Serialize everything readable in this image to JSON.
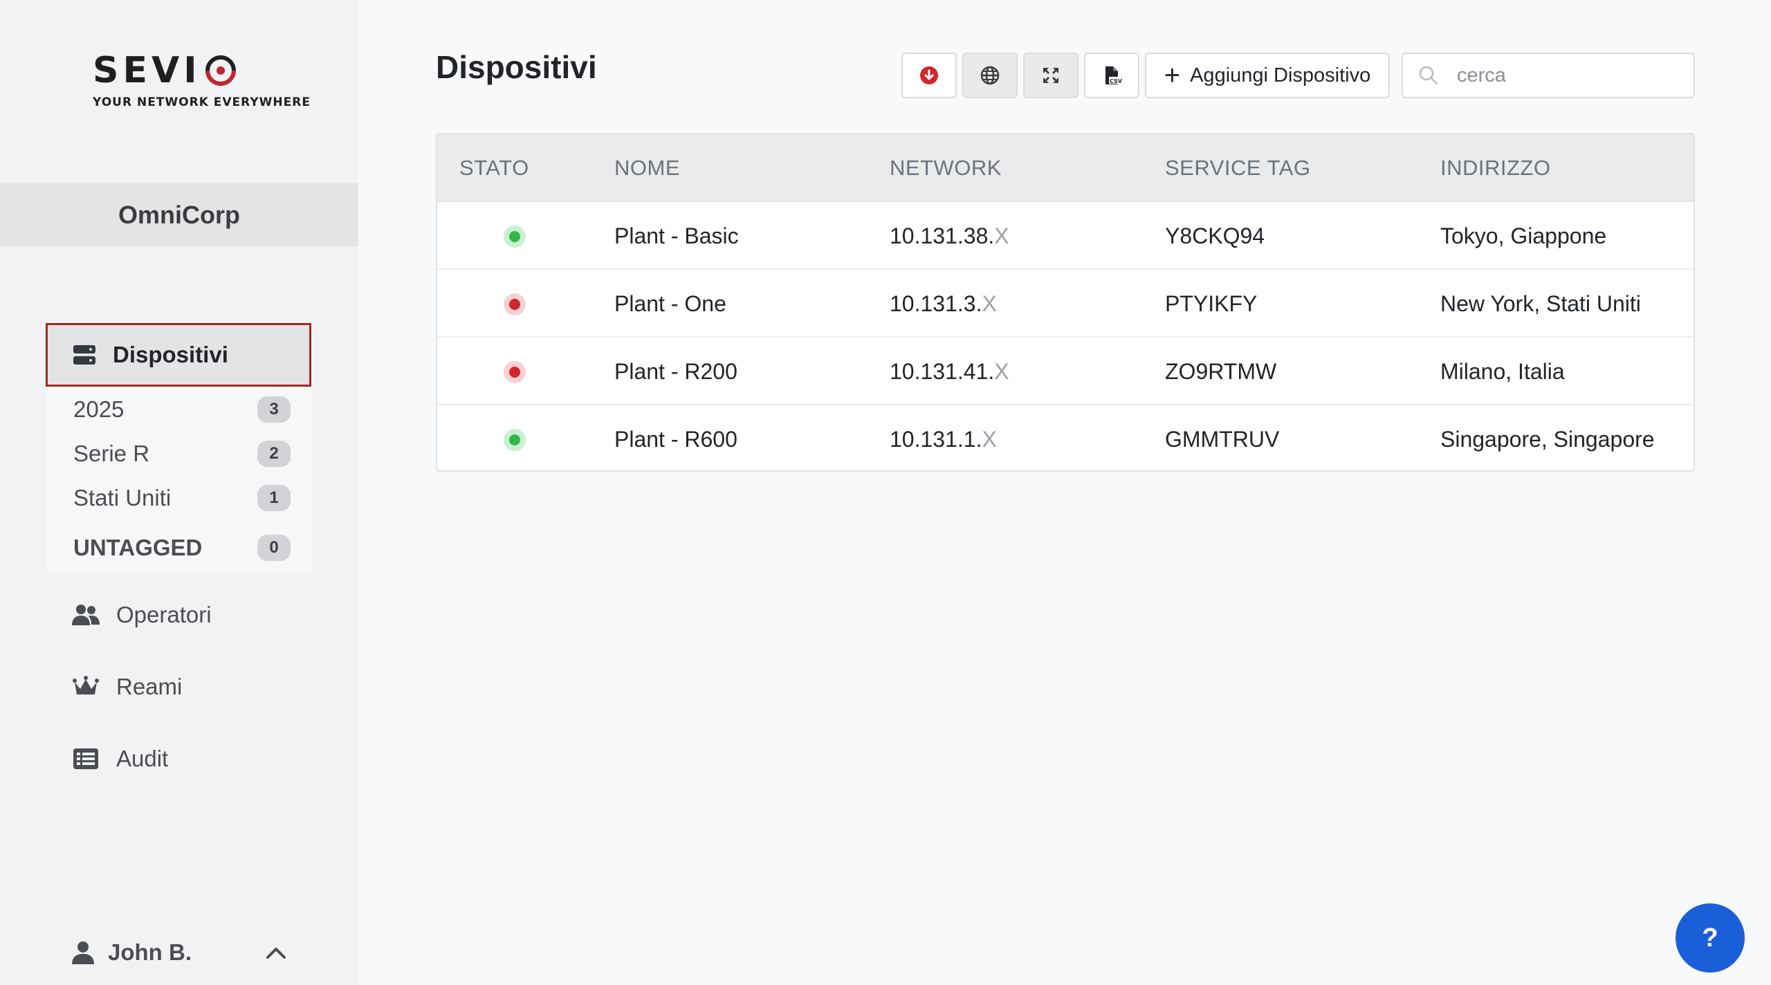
{
  "brand": {
    "logo_text": "SEVI",
    "tagline": "YOUR NETWORK EVERYWHERE",
    "accent": "#c0262d"
  },
  "sidebar": {
    "organization": "OmniCorp",
    "active_section": {
      "label": "Dispositivi",
      "icon": "server-icon"
    },
    "tags": [
      {
        "label": "2025",
        "count": "3"
      },
      {
        "label": "Serie R",
        "count": "2"
      },
      {
        "label": "Stati Uniti",
        "count": "1"
      },
      {
        "label": "UNTAGGED",
        "count": "0"
      }
    ],
    "items": [
      {
        "label": "Operatori",
        "icon": "users-icon"
      },
      {
        "label": "Reami",
        "icon": "crown-icon"
      },
      {
        "label": "Audit",
        "icon": "list-icon"
      }
    ],
    "user": {
      "name": "John B.",
      "icon": "user-icon"
    }
  },
  "main": {
    "title": "Dispositivi",
    "toolbar": {
      "download_icon": "download-icon",
      "globe_icon": "globe-icon",
      "expand_icon": "expand-icon",
      "csv_icon": "csv-file-icon",
      "add_label": "Aggiungi Dispositivo",
      "search_placeholder": "cerca"
    },
    "table": {
      "headers": [
        "STATO",
        "NOME",
        "NETWORK",
        "SERVICE TAG",
        "INDIRIZZO"
      ],
      "rows": [
        {
          "status": "online",
          "name": "Plant - Basic",
          "network": "10.131.38.",
          "network_suffix": "X",
          "service_tag": "Y8CKQ94",
          "address": "Tokyo, Giappone"
        },
        {
          "status": "offline",
          "name": "Plant - One",
          "network": "10.131.3.",
          "network_suffix": "X",
          "service_tag": "PTYIKFY",
          "address": "New York, Stati Uniti"
        },
        {
          "status": "offline",
          "name": "Plant - R200",
          "network": "10.131.41.",
          "network_suffix": "X",
          "service_tag": "ZO9RTMW",
          "address": "Milano, Italia"
        },
        {
          "status": "online",
          "name": "Plant - R600",
          "network": "10.131.1.",
          "network_suffix": "X",
          "service_tag": "GMMTRUV",
          "address": "Singapore, Singapore"
        }
      ]
    },
    "status_colors": {
      "online": {
        "dot": "#2eb84a",
        "halo": "#c9f0d2"
      },
      "offline": {
        "dot": "#d1262c",
        "halo": "#f8d1d3"
      }
    }
  },
  "help": {
    "label": "?"
  }
}
